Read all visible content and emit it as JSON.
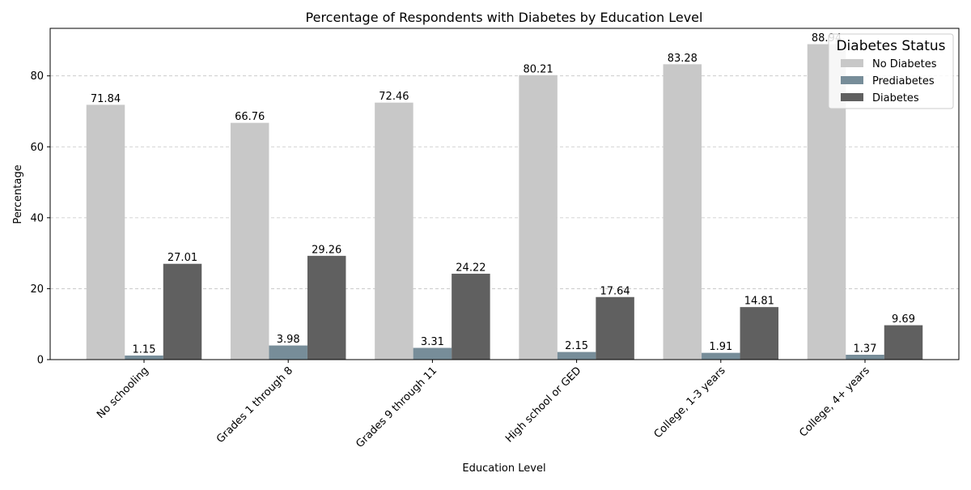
{
  "chart_data": {
    "type": "bar",
    "title": "Percentage of Respondents with Diabetes by Education Level",
    "xlabel": "Education Level",
    "ylabel": "Percentage",
    "ylim": [
      0,
      93.4
    ],
    "yticks": [
      0,
      20,
      40,
      60,
      80
    ],
    "grid": "y-dashed",
    "legend_position": "top-right",
    "legend_title": "Diabetes Status",
    "categories": [
      "No schooling",
      "Grades 1 through 8",
      "Grades 9 through 11",
      "High school or GED",
      "College, 1-3 years",
      "College, 4+ years"
    ],
    "series": [
      {
        "name": "No Diabetes",
        "color": "#c8c8c8",
        "values": [
          71.84,
          66.76,
          72.46,
          80.21,
          83.28,
          88.94
        ],
        "labels": [
          "71.84",
          "66.76",
          "72.46",
          "80.21",
          "83.28",
          "88.94"
        ]
      },
      {
        "name": "Prediabetes",
        "color": "#778d99",
        "values": [
          1.15,
          3.98,
          3.31,
          2.15,
          1.91,
          1.37
        ],
        "labels": [
          "1.15",
          "3.98",
          "3.31",
          "2.15",
          "1.91",
          "1.37"
        ]
      },
      {
        "name": "Diabetes",
        "color": "#606060",
        "values": [
          27.01,
          29.26,
          24.22,
          17.64,
          14.81,
          9.69
        ],
        "labels": [
          "27.01",
          "29.26",
          "24.22",
          "17.64",
          "14.81",
          "9.69"
        ]
      }
    ]
  }
}
